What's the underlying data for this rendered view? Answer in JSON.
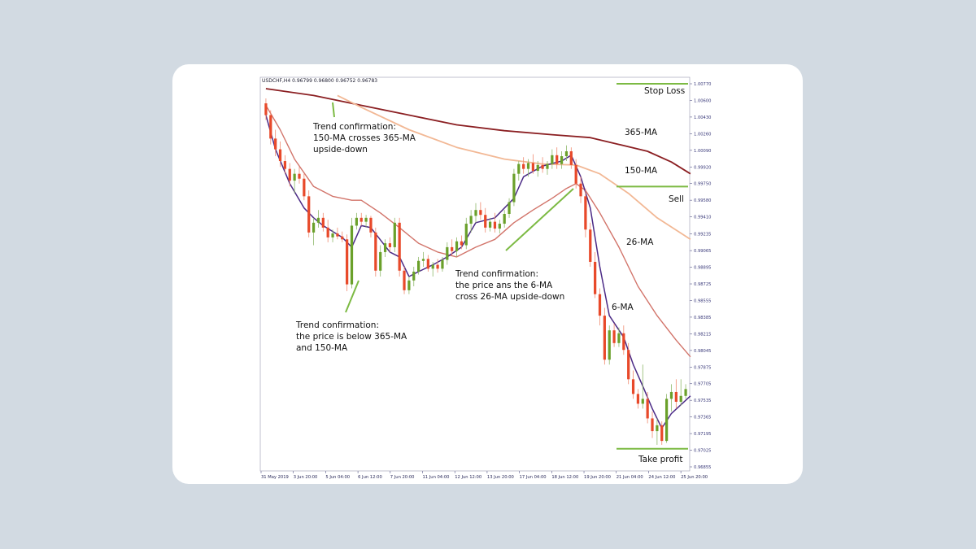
{
  "chart_data": {
    "type": "candlestick",
    "header": "USDCHF,H4  0.96799 0.96800 0.96752 0.96783",
    "y_ticks": [
      "1.00770",
      "1.00600",
      "1.00430",
      "1.00260",
      "1.00090",
      "0.99920",
      "0.99750",
      "0.99580",
      "0.99410",
      "0.99235",
      "0.99065",
      "0.98895",
      "0.98725",
      "0.98555",
      "0.98385",
      "0.98215",
      "0.98045",
      "0.97875",
      "0.97705",
      "0.97535",
      "0.97365",
      "0.97195",
      "0.97025",
      "0.96855"
    ],
    "x_ticks": [
      "31 May 2019",
      "3 Jun 20:00",
      "5 Jun 04:00",
      "6 Jun 12:00",
      "7 Jun 20:00",
      "11 Jun 04:00",
      "12 Jun 12:00",
      "13 Jun 20:00",
      "17 Jun 04:00",
      "18 Jun 12:00",
      "19 Jun 20:00",
      "21 Jun 04:00",
      "24 Jun 12:00",
      "25 Jun 20:00"
    ],
    "ylim": [
      0.96855,
      1.0077
    ],
    "candles": [
      [
        1.0057,
        1.0062,
        1.004,
        1.0045
      ],
      [
        1.0045,
        1.005,
        1.0015,
        1.0021
      ],
      [
        1.0021,
        1.003,
        1.0003,
        1.001
      ],
      [
        1.001,
        1.0018,
        0.9992,
        0.9998
      ],
      [
        0.9998,
        1.0004,
        0.9985,
        0.999
      ],
      [
        0.999,
        0.9996,
        0.9972,
        0.9978
      ],
      [
        0.9978,
        0.999,
        0.9965,
        0.9985
      ],
      [
        0.9985,
        0.9992,
        0.9975,
        0.998
      ],
      [
        0.998,
        0.9985,
        0.9958,
        0.9962
      ],
      [
        0.9962,
        0.9968,
        0.992,
        0.9925
      ],
      [
        0.9925,
        0.994,
        0.9912,
        0.9935
      ],
      [
        0.9935,
        0.9948,
        0.993,
        0.994
      ],
      [
        0.994,
        0.9945,
        0.9926,
        0.993
      ],
      [
        0.993,
        0.9938,
        0.9915,
        0.992
      ],
      [
        0.992,
        0.9928,
        0.9915,
        0.9924
      ],
      [
        0.9924,
        0.993,
        0.9918,
        0.9921
      ],
      [
        0.9921,
        0.9926,
        0.9915,
        0.9918
      ],
      [
        0.9918,
        0.9923,
        0.9865,
        0.9872
      ],
      [
        0.9872,
        0.994,
        0.9868,
        0.9932
      ],
      [
        0.9932,
        0.9945,
        0.9928,
        0.994
      ],
      [
        0.994,
        0.9945,
        0.9932,
        0.9936
      ],
      [
        0.9936,
        0.9943,
        0.993,
        0.994
      ],
      [
        0.994,
        0.9942,
        0.992,
        0.9925
      ],
      [
        0.9925,
        0.993,
        0.988,
        0.9886
      ],
      [
        0.9886,
        0.9912,
        0.988,
        0.9905
      ],
      [
        0.9905,
        0.9918,
        0.99,
        0.9914
      ],
      [
        0.9914,
        0.992,
        0.9905,
        0.991
      ],
      [
        0.991,
        0.994,
        0.9905,
        0.9935
      ],
      [
        0.9935,
        0.994,
        0.988,
        0.9886
      ],
      [
        0.9886,
        0.989,
        0.9862,
        0.9866
      ],
      [
        0.9866,
        0.988,
        0.9862,
        0.9876
      ],
      [
        0.9876,
        0.989,
        0.987,
        0.9885
      ],
      [
        0.9885,
        0.99,
        0.9882,
        0.9896
      ],
      [
        0.9896,
        0.9905,
        0.989,
        0.9898
      ],
      [
        0.9898,
        0.9902,
        0.9885,
        0.9888
      ],
      [
        0.9888,
        0.9895,
        0.988,
        0.9892
      ],
      [
        0.9892,
        0.9898,
        0.9884,
        0.9888
      ],
      [
        0.9888,
        0.99,
        0.9885,
        0.9897
      ],
      [
        0.9897,
        0.9915,
        0.9892,
        0.991
      ],
      [
        0.991,
        0.9918,
        0.9902,
        0.9906
      ],
      [
        0.9906,
        0.992,
        0.99,
        0.9916
      ],
      [
        0.9916,
        0.9922,
        0.9908,
        0.9912
      ],
      [
        0.9912,
        0.994,
        0.9908,
        0.9934
      ],
      [
        0.9934,
        0.9948,
        0.9925,
        0.9942
      ],
      [
        0.9942,
        0.9955,
        0.9935,
        0.9948
      ],
      [
        0.9948,
        0.9956,
        0.9938,
        0.9943
      ],
      [
        0.9943,
        0.995,
        0.9925,
        0.993
      ],
      [
        0.993,
        0.994,
        0.9926,
        0.9936
      ],
      [
        0.9936,
        0.9945,
        0.9925,
        0.9929
      ],
      [
        0.9929,
        0.9938,
        0.9924,
        0.9934
      ],
      [
        0.9934,
        0.9948,
        0.993,
        0.9944
      ],
      [
        0.9944,
        0.996,
        0.994,
        0.9956
      ],
      [
        0.9956,
        0.999,
        0.9952,
        0.9985
      ],
      [
        0.9985,
        0.9998,
        0.9978,
        0.9995
      ],
      [
        0.9995,
        1.0002,
        0.9985,
        0.999
      ],
      [
        0.999,
        1.0,
        0.9982,
        0.9996
      ],
      [
        0.9996,
        1.0005,
        0.9985,
        0.9988
      ],
      [
        0.9988,
        0.9998,
        0.9982,
        0.9994
      ],
      [
        0.9994,
        1.0002,
        0.9986,
        0.999
      ],
      [
        0.999,
        0.9998,
        0.9984,
        0.9995
      ],
      [
        0.9995,
        1.001,
        0.999,
        1.0004
      ],
      [
        1.0004,
        1.0012,
        0.999,
        0.9995
      ],
      [
        0.9995,
        1.0008,
        0.999,
        1.0003
      ],
      [
        1.0003,
        1.0014,
        0.9998,
        1.0008
      ],
      [
        1.0008,
        1.0012,
        0.999,
        0.9994
      ],
      [
        0.9994,
        1.0,
        0.997,
        0.9975
      ],
      [
        0.9975,
        0.9982,
        0.9955,
        0.9962
      ],
      [
        0.9962,
        0.997,
        0.992,
        0.9928
      ],
      [
        0.9928,
        0.9935,
        0.989,
        0.9895
      ],
      [
        0.9895,
        0.9905,
        0.9858,
        0.9862
      ],
      [
        0.9862,
        0.9868,
        0.983,
        0.984
      ],
      [
        0.984,
        0.9848,
        0.979,
        0.9795
      ],
      [
        0.9795,
        0.983,
        0.979,
        0.9825
      ],
      [
        0.9825,
        0.9832,
        0.9808,
        0.9812
      ],
      [
        0.9812,
        0.9828,
        0.9808,
        0.9822
      ],
      [
        0.9822,
        0.983,
        0.98,
        0.9805
      ],
      [
        0.9805,
        0.9812,
        0.977,
        0.9775
      ],
      [
        0.9775,
        0.9784,
        0.9755,
        0.976
      ],
      [
        0.976,
        0.9765,
        0.9745,
        0.975
      ],
      [
        0.975,
        0.979,
        0.9745,
        0.9755
      ],
      [
        0.9755,
        0.9762,
        0.973,
        0.9735
      ],
      [
        0.9735,
        0.9742,
        0.9715,
        0.9722
      ],
      [
        0.9722,
        0.9735,
        0.9708,
        0.9728
      ],
      [
        0.9728,
        0.9732,
        0.9708,
        0.9712
      ],
      [
        0.9712,
        0.976,
        0.971,
        0.9755
      ],
      [
        0.9755,
        0.977,
        0.9742,
        0.9762
      ],
      [
        0.9762,
        0.9775,
        0.9745,
        0.9752
      ],
      [
        0.9752,
        0.9775,
        0.9748,
        0.9758
      ],
      [
        0.9758,
        0.977,
        0.9755,
        0.9765
      ]
    ],
    "ma_6": [
      [
        0,
        1.0045
      ],
      [
        2,
        1.001
      ],
      [
        5,
        0.9975
      ],
      [
        8,
        0.995
      ],
      [
        10,
        0.994
      ],
      [
        12,
        0.9932
      ],
      [
        16,
        0.992
      ],
      [
        18,
        0.991
      ],
      [
        20,
        0.9932
      ],
      [
        22,
        0.993
      ],
      [
        26,
        0.9905
      ],
      [
        28,
        0.99
      ],
      [
        30,
        0.988
      ],
      [
        32,
        0.9885
      ],
      [
        35,
        0.9892
      ],
      [
        38,
        0.99
      ],
      [
        41,
        0.991
      ],
      [
        44,
        0.9935
      ],
      [
        48,
        0.994
      ],
      [
        52,
        0.996
      ],
      [
        54,
        0.9982
      ],
      [
        58,
        0.9993
      ],
      [
        62,
        0.9998
      ],
      [
        64,
        1.0004
      ],
      [
        66,
        0.9982
      ],
      [
        68,
        0.995
      ],
      [
        70,
        0.989
      ],
      [
        72,
        0.984
      ],
      [
        75,
        0.9818
      ],
      [
        77,
        0.979
      ],
      [
        79,
        0.9768
      ],
      [
        81,
        0.9745
      ],
      [
        83,
        0.9725
      ],
      [
        85,
        0.974
      ],
      [
        89,
        0.9758
      ]
    ],
    "ma_26": [
      [
        0,
        1.0055
      ],
      [
        3,
        1.003
      ],
      [
        6,
        1.0
      ],
      [
        10,
        0.9972
      ],
      [
        14,
        0.9962
      ],
      [
        18,
        0.9958
      ],
      [
        20,
        0.9958
      ],
      [
        24,
        0.9945
      ],
      [
        28,
        0.993
      ],
      [
        32,
        0.9914
      ],
      [
        36,
        0.9905
      ],
      [
        40,
        0.99
      ],
      [
        44,
        0.991
      ],
      [
        48,
        0.9918
      ],
      [
        52,
        0.9935
      ],
      [
        56,
        0.9948
      ],
      [
        60,
        0.996
      ],
      [
        63,
        0.997
      ],
      [
        65,
        0.9975
      ],
      [
        67,
        0.9968
      ],
      [
        70,
        0.9945
      ],
      [
        74,
        0.991
      ],
      [
        78,
        0.987
      ],
      [
        82,
        0.984
      ],
      [
        86,
        0.9815
      ],
      [
        89,
        0.9798
      ]
    ],
    "ma_150": [
      [
        15,
        1.0065
      ],
      [
        20,
        1.0053
      ],
      [
        30,
        1.003
      ],
      [
        40,
        1.0012
      ],
      [
        50,
        1.0
      ],
      [
        58,
        0.9995
      ],
      [
        65,
        0.9994
      ],
      [
        70,
        0.9985
      ],
      [
        76,
        0.9965
      ],
      [
        82,
        0.994
      ],
      [
        89,
        0.9918
      ]
    ],
    "ma_365": [
      [
        0,
        1.0072
      ],
      [
        10,
        1.0065
      ],
      [
        20,
        1.0055
      ],
      [
        30,
        1.0045
      ],
      [
        40,
        1.0035
      ],
      [
        50,
        1.0029
      ],
      [
        60,
        1.0025
      ],
      [
        68,
        1.0022
      ],
      [
        74,
        1.0015
      ],
      [
        80,
        1.0008
      ],
      [
        85,
        0.9997
      ],
      [
        89,
        0.9985
      ]
    ],
    "levels": [
      {
        "name": "Stop Loss",
        "value": 1.0077
      },
      {
        "name": "Sell",
        "value": 0.9972
      },
      {
        "name": "Take profit",
        "value": 0.9704
      }
    ],
    "ma_labels": [
      "365-MA",
      "150-MA",
      "26-MA",
      "6-MA"
    ],
    "annotations": [
      {
        "lines": [
          "Trend confirmation:",
          "150-MA crosses 365-MA",
          "upside-down"
        ]
      },
      {
        "lines": [
          "Trend confirmation:",
          "the price ans the 6-MA",
          "cross 26-MA upside-down"
        ]
      },
      {
        "lines": [
          "Trend confirmation:",
          "the price is below 365-MA",
          "and 150-MA"
        ]
      }
    ],
    "colors": {
      "bull": "#6aa02a",
      "bear": "#e8492a",
      "ma_6": "#4b2a86",
      "ma_26": "#d2746a",
      "ma_150": "#f2b895",
      "ma_365": "#8b1f22",
      "level": "#7cba43",
      "axis": "#5a5a8a"
    }
  }
}
